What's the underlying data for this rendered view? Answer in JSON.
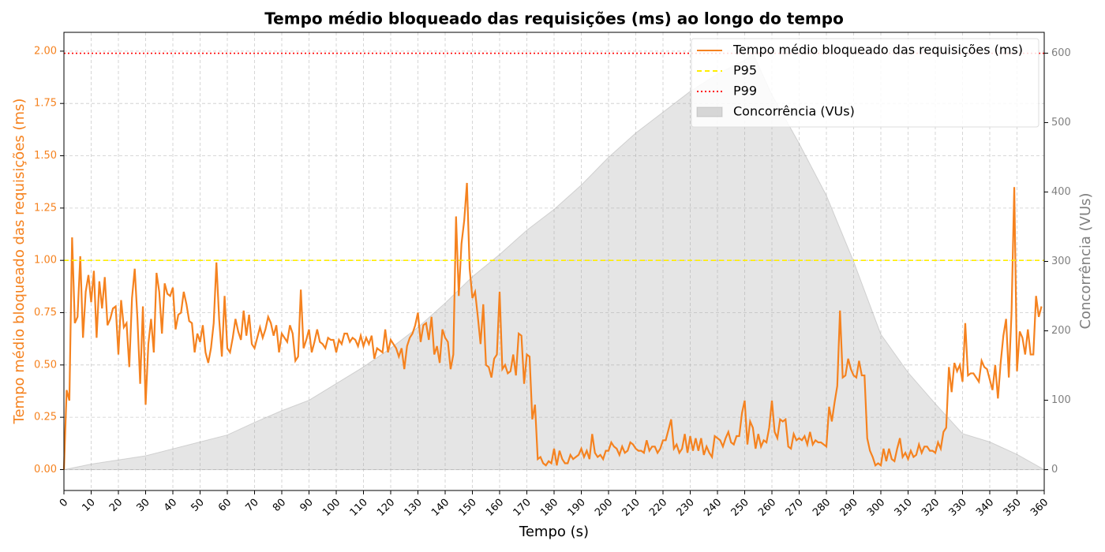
{
  "chart_data": {
    "type": "line",
    "title": "Tempo médio bloqueado das requisições (ms) ao longo do tempo",
    "xlabel": "Tempo (s)",
    "ylabel": "Tempo médio bloqueado das requisições (ms)",
    "y2label": "Concorrência (VUs)",
    "xlim": [
      0,
      360
    ],
    "ylim": [
      -0.1,
      2.09
    ],
    "y2lim": [
      -30,
      630
    ],
    "xticks": [
      0,
      10,
      20,
      30,
      40,
      50,
      60,
      70,
      80,
      90,
      100,
      110,
      120,
      130,
      140,
      150,
      160,
      170,
      180,
      190,
      200,
      210,
      220,
      230,
      240,
      250,
      260,
      270,
      280,
      290,
      300,
      310,
      320,
      330,
      340,
      350,
      360
    ],
    "yticks": [
      {
        "value": 0,
        "label": "0.00"
      },
      {
        "value": 0.25,
        "label": "0.25"
      },
      {
        "value": 0.5,
        "label": "0.50"
      },
      {
        "value": 0.75,
        "label": "0.75"
      },
      {
        "value": 1,
        "label": "1.00"
      },
      {
        "value": 1.25,
        "label": "1.25"
      },
      {
        "value": 1.5,
        "label": "1.50"
      },
      {
        "value": 1.75,
        "label": "1.75"
      },
      {
        "value": 2,
        "label": "2.00"
      }
    ],
    "y2ticks": [
      0,
      100,
      200,
      300,
      400,
      500,
      600
    ],
    "grid": true,
    "legend": "upper right",
    "series": [
      {
        "name": "Tempo médio bloqueado das requisições (ms)",
        "kind": "line",
        "line_style": "solid",
        "color": "#f5821f",
        "axis": "y",
        "x": [
          0,
          1,
          2,
          3,
          4,
          5,
          6,
          7,
          8,
          9,
          10,
          11,
          12,
          13,
          14,
          15,
          16,
          17,
          18,
          19,
          20,
          21,
          22,
          23,
          24,
          25,
          26,
          27,
          28,
          29,
          30,
          31,
          32,
          33,
          34,
          35,
          36,
          37,
          38,
          39,
          40,
          41,
          42,
          43,
          44,
          45,
          46,
          47,
          48,
          49,
          50,
          51,
          52,
          53,
          54,
          55,
          56,
          57,
          58,
          59,
          60,
          61,
          62,
          63,
          64,
          65,
          66,
          67,
          68,
          69,
          70,
          71,
          72,
          73,
          74,
          75,
          76,
          77,
          78,
          79,
          80,
          81,
          82,
          83,
          84,
          85,
          86,
          87,
          88,
          89,
          90,
          91,
          92,
          93,
          94,
          95,
          96,
          97,
          98,
          99,
          100,
          101,
          102,
          103,
          104,
          105,
          106,
          107,
          108,
          109,
          110,
          111,
          112,
          113,
          114,
          115,
          116,
          117,
          118,
          119,
          120,
          121,
          122,
          123,
          124,
          125,
          126,
          127,
          128,
          129,
          130,
          131,
          132,
          133,
          134,
          135,
          136,
          137,
          138,
          139,
          140,
          141,
          142,
          143,
          144,
          145,
          146,
          147,
          148,
          149,
          150,
          151,
          152,
          153,
          154,
          155,
          156,
          157,
          158,
          159,
          160,
          161,
          162,
          163,
          164,
          165,
          166,
          167,
          168,
          169,
          170,
          171,
          172,
          173,
          174,
          175,
          176,
          177,
          178,
          179,
          180,
          181,
          182,
          183,
          184,
          185,
          186,
          187,
          188,
          189,
          190,
          191,
          192,
          193,
          194,
          195,
          196,
          197,
          198,
          199,
          200,
          201,
          202,
          203,
          204,
          205,
          206,
          207,
          208,
          209,
          210,
          211,
          212,
          213,
          214,
          215,
          216,
          217,
          218,
          219,
          220,
          221,
          222,
          223,
          224,
          225,
          226,
          227,
          228,
          229,
          230,
          231,
          232,
          233,
          234,
          235,
          236,
          237,
          238,
          239,
          240,
          241,
          242,
          243,
          244,
          245,
          246,
          247,
          248,
          249,
          250,
          251,
          252,
          253,
          254,
          255,
          256,
          257,
          258,
          259,
          260,
          261,
          262,
          263,
          264,
          265,
          266,
          267,
          268,
          269,
          270,
          271,
          272,
          273,
          274,
          275,
          276,
          277,
          278,
          279,
          280,
          281,
          282,
          283,
          284,
          285,
          286,
          287,
          288,
          289,
          290,
          291,
          292,
          293,
          294,
          295,
          296,
          297,
          298,
          299,
          300,
          301,
          302,
          303,
          304,
          305,
          306,
          307,
          308,
          309,
          310,
          311,
          312,
          313,
          314,
          315,
          316,
          317,
          318,
          319,
          320,
          321,
          322,
          323,
          324,
          325,
          326,
          327,
          328,
          329,
          330,
          331,
          332,
          333,
          334,
          335,
          336,
          337,
          338,
          339,
          340,
          341,
          342,
          343,
          344,
          345,
          346,
          347,
          348,
          349,
          350,
          351,
          352,
          353,
          354,
          355,
          356,
          357,
          358,
          359
        ],
        "values": [
          0.0,
          0.38,
          0.33,
          1.11,
          0.7,
          0.73,
          1.02,
          0.63,
          0.85,
          0.93,
          0.8,
          0.95,
          0.63,
          0.9,
          0.77,
          0.92,
          0.69,
          0.72,
          0.77,
          0.78,
          0.55,
          0.81,
          0.68,
          0.7,
          0.49,
          0.82,
          0.96,
          0.72,
          0.41,
          0.78,
          0.31,
          0.6,
          0.72,
          0.56,
          0.94,
          0.85,
          0.65,
          0.89,
          0.84,
          0.83,
          0.87,
          0.67,
          0.74,
          0.75,
          0.85,
          0.79,
          0.71,
          0.7,
          0.56,
          0.65,
          0.61,
          0.69,
          0.56,
          0.51,
          0.58,
          0.7,
          0.99,
          0.72,
          0.54,
          0.83,
          0.58,
          0.56,
          0.63,
          0.72,
          0.66,
          0.62,
          0.76,
          0.64,
          0.74,
          0.6,
          0.58,
          0.63,
          0.68,
          0.63,
          0.67,
          0.73,
          0.7,
          0.64,
          0.69,
          0.56,
          0.65,
          0.63,
          0.61,
          0.69,
          0.65,
          0.52,
          0.54,
          0.86,
          0.58,
          0.62,
          0.67,
          0.56,
          0.61,
          0.67,
          0.61,
          0.6,
          0.58,
          0.63,
          0.62,
          0.62,
          0.56,
          0.62,
          0.6,
          0.65,
          0.65,
          0.61,
          0.63,
          0.62,
          0.59,
          0.64,
          0.59,
          0.63,
          0.6,
          0.64,
          0.53,
          0.58,
          0.57,
          0.56,
          0.67,
          0.56,
          0.62,
          0.6,
          0.58,
          0.54,
          0.58,
          0.48,
          0.59,
          0.63,
          0.65,
          0.69,
          0.75,
          0.61,
          0.69,
          0.7,
          0.62,
          0.73,
          0.55,
          0.59,
          0.51,
          0.67,
          0.63,
          0.61,
          0.48,
          0.55,
          1.21,
          0.83,
          1.08,
          1.19,
          1.37,
          0.96,
          0.82,
          0.85,
          0.73,
          0.6,
          0.79,
          0.5,
          0.49,
          0.44,
          0.53,
          0.55,
          0.85,
          0.48,
          0.5,
          0.46,
          0.47,
          0.55,
          0.45,
          0.65,
          0.64,
          0.41,
          0.55,
          0.54,
          0.24,
          0.31,
          0.05,
          0.06,
          0.03,
          0.02,
          0.04,
          0.03,
          0.1,
          0.02,
          0.09,
          0.05,
          0.03,
          0.03,
          0.07,
          0.05,
          0.06,
          0.07,
          0.1,
          0.06,
          0.09,
          0.05,
          0.17,
          0.08,
          0.06,
          0.07,
          0.05,
          0.09,
          0.09,
          0.13,
          0.11,
          0.1,
          0.07,
          0.11,
          0.08,
          0.09,
          0.13,
          0.12,
          0.1,
          0.09,
          0.09,
          0.08,
          0.14,
          0.09,
          0.11,
          0.11,
          0.08,
          0.1,
          0.14,
          0.14,
          0.19,
          0.24,
          0.1,
          0.12,
          0.08,
          0.1,
          0.17,
          0.08,
          0.16,
          0.09,
          0.15,
          0.09,
          0.15,
          0.07,
          0.11,
          0.08,
          0.06,
          0.16,
          0.15,
          0.14,
          0.11,
          0.15,
          0.18,
          0.13,
          0.12,
          0.16,
          0.16,
          0.27,
          0.33,
          0.12,
          0.23,
          0.2,
          0.1,
          0.17,
          0.11,
          0.14,
          0.13,
          0.2,
          0.33,
          0.18,
          0.15,
          0.24,
          0.23,
          0.24,
          0.11,
          0.1,
          0.17,
          0.14,
          0.15,
          0.14,
          0.16,
          0.12,
          0.18,
          0.12,
          0.14,
          0.13,
          0.13,
          0.12,
          0.11,
          0.3,
          0.23,
          0.32,
          0.4,
          0.76,
          0.44,
          0.45,
          0.53,
          0.48,
          0.45,
          0.44,
          0.52,
          0.45,
          0.45,
          0.15,
          0.09,
          0.06,
          0.02,
          0.03,
          0.02,
          0.1,
          0.04,
          0.1,
          0.05,
          0.04,
          0.1,
          0.15,
          0.06,
          0.08,
          0.05,
          0.09,
          0.06,
          0.07,
          0.12,
          0.08,
          0.11,
          0.11,
          0.09,
          0.09,
          0.08,
          0.13,
          0.1,
          0.18,
          0.2,
          0.49,
          0.37,
          0.51,
          0.47,
          0.5,
          0.42,
          0.7,
          0.45,
          0.46,
          0.46,
          0.44,
          0.42,
          0.52,
          0.49,
          0.48,
          0.43,
          0.38,
          0.5,
          0.34,
          0.51,
          0.64,
          0.72,
          0.44,
          0.75,
          1.35,
          0.47,
          0.66,
          0.63,
          0.55,
          0.67,
          0.55,
          0.55,
          0.83,
          0.73,
          0.78
        ]
      },
      {
        "name": "P95",
        "kind": "line",
        "line_style": "dashed",
        "color": "#ffee00",
        "axis": "y",
        "x": [
          0,
          360
        ],
        "values": [
          1.0,
          1.0
        ]
      },
      {
        "name": "P99",
        "kind": "line",
        "line_style": "dotted",
        "color": "#ff0000",
        "axis": "y",
        "x": [
          0,
          360
        ],
        "values": [
          1.99,
          1.99
        ]
      },
      {
        "name": "Concorrência (VUs)",
        "kind": "area",
        "line_style": "solid",
        "color": "#a0a0a0",
        "axis": "y2",
        "x": [
          0,
          10,
          20,
          30,
          40,
          50,
          60,
          70,
          80,
          90,
          100,
          110,
          120,
          130,
          140,
          150,
          160,
          170,
          180,
          190,
          200,
          210,
          220,
          230,
          240,
          250,
          253,
          260,
          270,
          280,
          290,
          300,
          310,
          320,
          330,
          340,
          350,
          360
        ],
        "values": [
          0,
          8,
          14,
          20,
          30,
          40,
          50,
          68,
          85,
          100,
          124,
          148,
          175,
          205,
          240,
          278,
          310,
          345,
          375,
          410,
          450,
          485,
          515,
          545,
          570,
          590,
          600,
          540,
          470,
          395,
          300,
          195,
          140,
          95,
          52,
          40,
          22,
          0
        ]
      }
    ]
  }
}
